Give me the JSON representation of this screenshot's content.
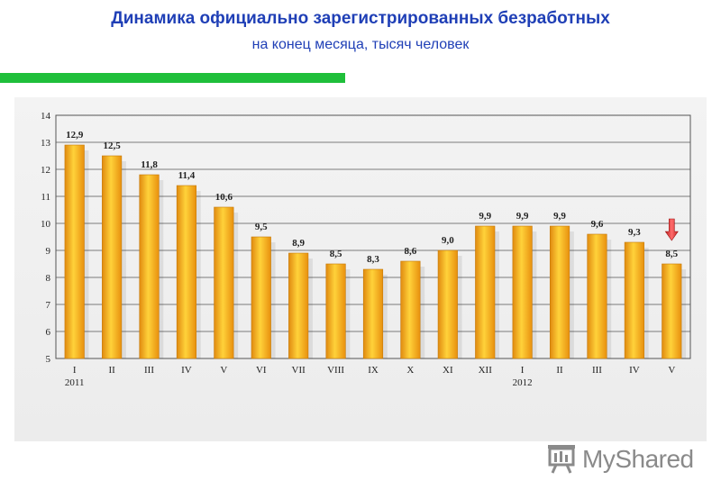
{
  "header": {
    "title": "Динамика официально зарегистрированных безработных",
    "subtitle": "на конец месяца, тысяч человек"
  },
  "colors": {
    "title": "#1f3fb6",
    "accent_bar": "#1fbf3a",
    "bar_fill": "#f5a623",
    "arrow": "#e23b3b"
  },
  "chart_data": {
    "type": "bar",
    "categories": [
      "I",
      "II",
      "III",
      "IV",
      "V",
      "VI",
      "VII",
      "VIII",
      "IX",
      "X",
      "XI",
      "XII",
      "I",
      "II",
      "III",
      "IV",
      "V"
    ],
    "category_groups": [
      {
        "label": "2011",
        "start_index": 0
      },
      {
        "label": "2012",
        "start_index": 12
      }
    ],
    "values": [
      12.9,
      12.5,
      11.8,
      11.4,
      10.6,
      9.5,
      8.9,
      8.5,
      8.3,
      8.6,
      9.0,
      9.9,
      9.9,
      9.9,
      9.6,
      9.3,
      8.5
    ],
    "data_labels": [
      "12,9",
      "12,5",
      "11,8",
      "11,4",
      "10,6",
      "9,5",
      "8,9",
      "8,5",
      "8,3",
      "8,6",
      "9,0",
      "9,9",
      "9,9",
      "9,9",
      "9,6",
      "9,3",
      "8,5"
    ],
    "ylim": [
      5,
      14
    ],
    "yticks": [
      5,
      6,
      7,
      8,
      9,
      10,
      11,
      12,
      13,
      14
    ],
    "grid": true,
    "legend": "none",
    "annotation": {
      "type": "down-arrow",
      "category_index": 16
    }
  },
  "logo": {
    "text": "MyShared"
  }
}
